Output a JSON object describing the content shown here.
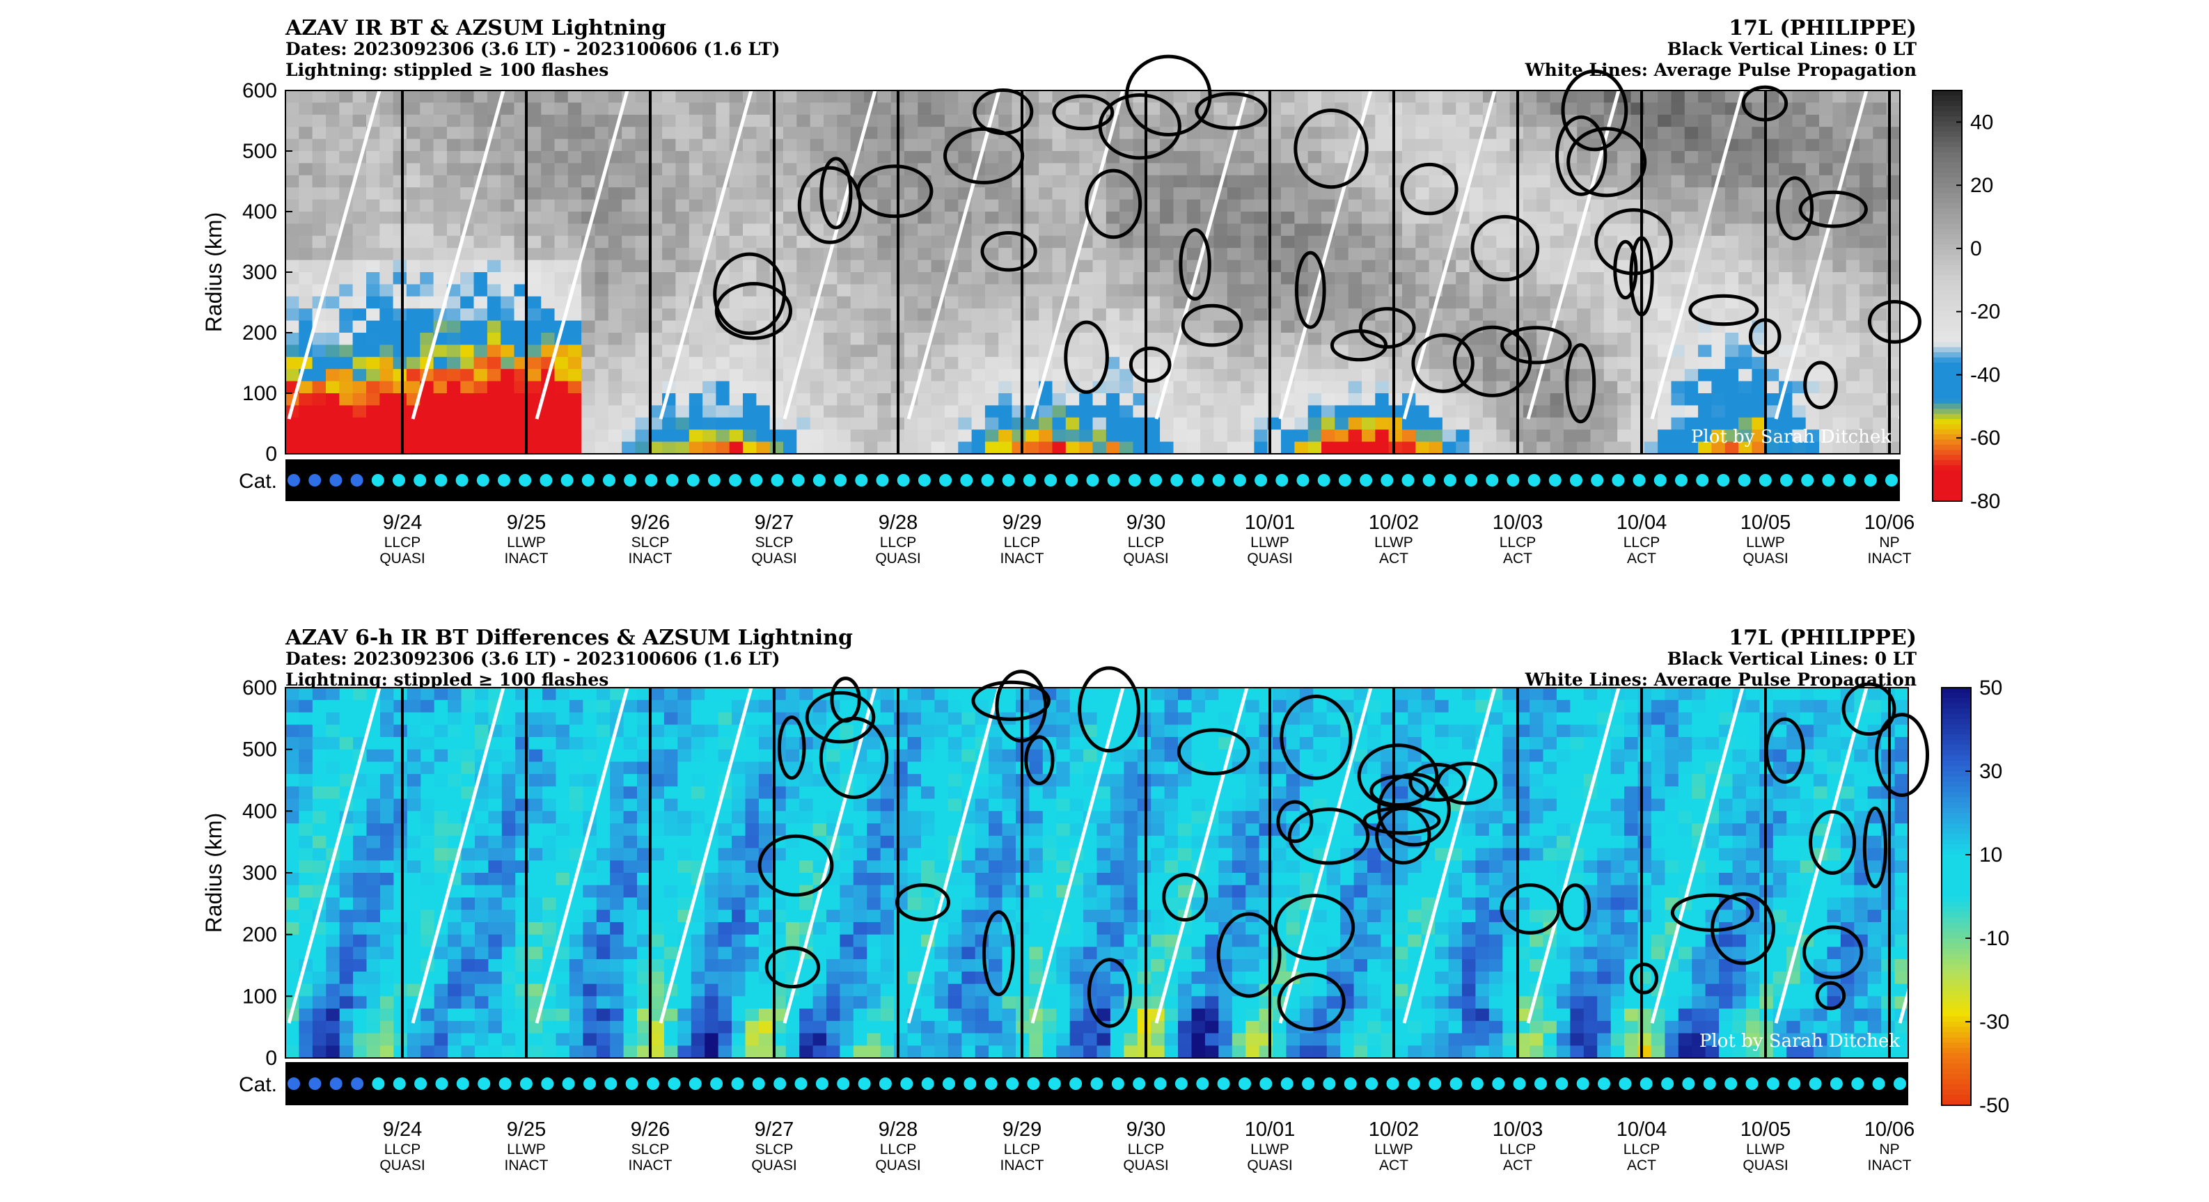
{
  "panels": [
    {
      "title": "AZAV IR BT & AZSUM Lightning",
      "dates": "Dates: 2023092306 (3.6 LT) - 2023100606 (1.6 LT)",
      "lightning": "Lightning: stippled ≥ 100 flashes",
      "storm": "17L (PHILIPPE)",
      "black_lines": "Black Vertical Lines: 0 LT",
      "white_lines": "White Lines: Average Pulse Propagation",
      "credit": "Plot by Sarah Ditchek",
      "colorbar_ticks": [
        "40",
        "20",
        "0",
        "-20",
        "-40",
        "-60",
        "-80"
      ]
    },
    {
      "title": "AZAV 6-h IR BT Differences & AZSUM Lightning",
      "dates": "Dates: 2023092306 (3.6 LT) - 2023100606 (1.6 LT)",
      "lightning": "Lightning: stippled ≥ 100 flashes",
      "storm": "17L (PHILIPPE)",
      "black_lines": "Black Vertical Lines: 0 LT",
      "white_lines": "White Lines: Average Pulse Propagation",
      "credit": "Plot by Sarah Ditchek",
      "colorbar_ticks": [
        "50",
        "30",
        "10",
        "-10",
        "-30",
        "-50"
      ]
    }
  ],
  "axes": {
    "ylabel": "Radius (km)",
    "yticks": [
      "600",
      "500",
      "400",
      "300",
      "200",
      "100",
      "0"
    ],
    "cat_label": "Cat."
  },
  "days": [
    {
      "date": "9/24",
      "phase": "LLCP",
      "state": "QUASI"
    },
    {
      "date": "9/25",
      "phase": "LLWP",
      "state": "INACT"
    },
    {
      "date": "9/26",
      "phase": "SLCP",
      "state": "INACT"
    },
    {
      "date": "9/27",
      "phase": "SLCP",
      "state": "QUASI"
    },
    {
      "date": "9/28",
      "phase": "LLCP",
      "state": "QUASI"
    },
    {
      "date": "9/29",
      "phase": "LLCP",
      "state": "INACT"
    },
    {
      "date": "9/30",
      "phase": "LLCP",
      "state": "QUASI"
    },
    {
      "date": "10/01",
      "phase": "LLWP",
      "state": "QUASI"
    },
    {
      "date": "10/02",
      "phase": "LLWP",
      "state": "ACT"
    },
    {
      "date": "10/03",
      "phase": "LLCP",
      "state": "ACT"
    },
    {
      "date": "10/04",
      "phase": "LLCP",
      "state": "ACT"
    },
    {
      "date": "10/05",
      "phase": "LLWP",
      "state": "QUASI"
    },
    {
      "date": "10/06",
      "phase": "NP",
      "state": "INACT"
    }
  ],
  "chart_data": [
    {
      "type": "heatmap",
      "title": "AZAV IR BT & AZSUM Lightning",
      "ylabel": "Radius (km)",
      "ylim": [
        0,
        600
      ],
      "xlim": [
        "2023092306",
        "2023100606"
      ],
      "x_tick_labels": [
        "9/24",
        "9/25",
        "9/26",
        "9/27",
        "9/28",
        "9/29",
        "9/30",
        "10/01",
        "10/02",
        "10/03",
        "10/04",
        "10/05",
        "10/06"
      ],
      "colorbar": {
        "min": -80,
        "max": 50,
        "ticks": [
          40,
          20,
          0,
          -20,
          -40,
          -60,
          -80
        ]
      },
      "colors": {
        "cold_red": "#e8141b",
        "orange": "#f07a1a",
        "yellow": "#e8d800",
        "blue": "#1f8fd8",
        "light_gray": "#e6e6e6",
        "dark_gray": "#505050"
      }
    },
    {
      "type": "heatmap",
      "title": "AZAV 6-h IR BT Differences & AZSUM Lightning",
      "ylabel": "Radius (km)",
      "ylim": [
        0,
        600
      ],
      "xlim": [
        "2023092306",
        "2023100606"
      ],
      "x_tick_labels": [
        "9/24",
        "9/25",
        "9/26",
        "9/27",
        "9/28",
        "9/29",
        "9/30",
        "10/01",
        "10/02",
        "10/03",
        "10/04",
        "10/05",
        "10/06"
      ],
      "colorbar": {
        "min": -50,
        "max": 50,
        "ticks": [
          50,
          30,
          10,
          -10,
          -30,
          -50
        ]
      },
      "colors": {
        "dark_blue": "#1a1aa0",
        "blue": "#2a7fd8",
        "cyan": "#18d8e8",
        "green": "#8ad888",
        "yellow": "#f0e000",
        "orange": "#f07a10",
        "red": "#e83a10"
      }
    }
  ]
}
